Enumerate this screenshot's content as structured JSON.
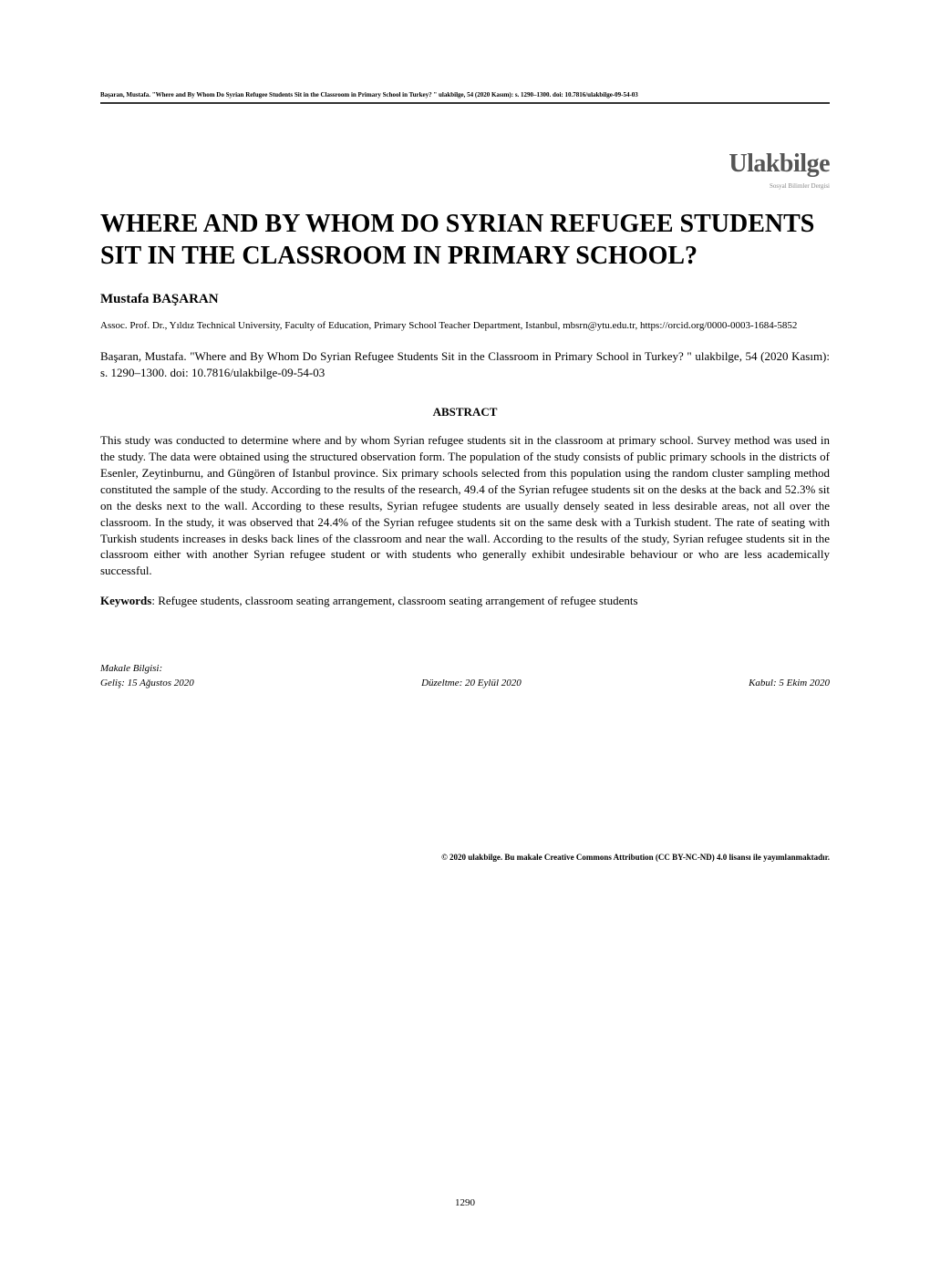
{
  "header_citation": "Başaran, Mustafa. \"Where and By Whom Do Syrian Refugee Students Sit in the Classroom in Primary School in Turkey? \" ulakbilge, 54 (2020 Kasım): s. 1290–1300. doi: 10.7816/ulakbilge-09-54-03",
  "journal_logo": "Ulakbilge",
  "journal_logo_sub": "Sosyal Bilimler Dergisi",
  "article_title": "WHERE AND BY WHOM DO SYRIAN REFUGEE STUDENTS SIT IN THE CLASSROOM IN PRIMARY SCHOOL?",
  "author_name": "Mustafa BAŞARAN",
  "author_affiliation": "Assoc. Prof. Dr., Yıldız Technical University, Faculty of Education, Primary School Teacher Department, Istanbul, mbsrn@ytu.edu.tr, https://orcid.org/0000-0003-1684-5852",
  "citation_text": "Başaran, Mustafa. \"Where and By Whom Do Syrian Refugee Students Sit in the Classroom in Primary School in Turkey? \" ulakbilge, 54 (2020 Kasım): s. 1290–1300. doi: 10.7816/ulakbilge-09-54-03",
  "abstract_heading": "ABSTRACT",
  "abstract_text": "This study was conducted to determine where and by whom Syrian refugee students sit in the classroom at primary school. Survey method was used in the study. The data were obtained using the structured observation form. The population of the study consists of public primary schools in the districts of Esenler, Zeytinburnu, and Güngören of Istanbul province. Six primary schools selected from this population using the random cluster sampling method constituted the sample of the study. According to the results of the research, 49.4 of the Syrian refugee students sit on the desks at the back and 52.3% sit on the desks next to the wall. According to these results, Syrian refugee students are usually densely seated in less desirable areas, not all over the classroom. In the study, it was observed that 24.4% of the Syrian refugee students sit on the same desk with a Turkish student. The rate of seating with Turkish students increases in desks back lines of the classroom and near the wall. According to the results of the study, Syrian refugee students sit in the classroom either with another Syrian refugee student or with students who generally exhibit undesirable behaviour or who are less academically successful.",
  "keywords_label": "Keywords",
  "keywords_text": ": Refugee students, classroom seating arrangement, classroom seating arrangement of refugee students",
  "article_info_label": "Makale Bilgisi:",
  "dates": {
    "received": "Geliş: 15 Ağustos 2020",
    "revised": "Düzeltme: 20 Eylül 2020",
    "accepted": "Kabul: 5 Ekim 2020"
  },
  "copyright": "© 2020 ulakbilge. Bu makale Creative Commons Attribution (CC BY-NC-ND) 4.0 lisansı ile yayımlanmaktadır.",
  "page_number": "1290"
}
